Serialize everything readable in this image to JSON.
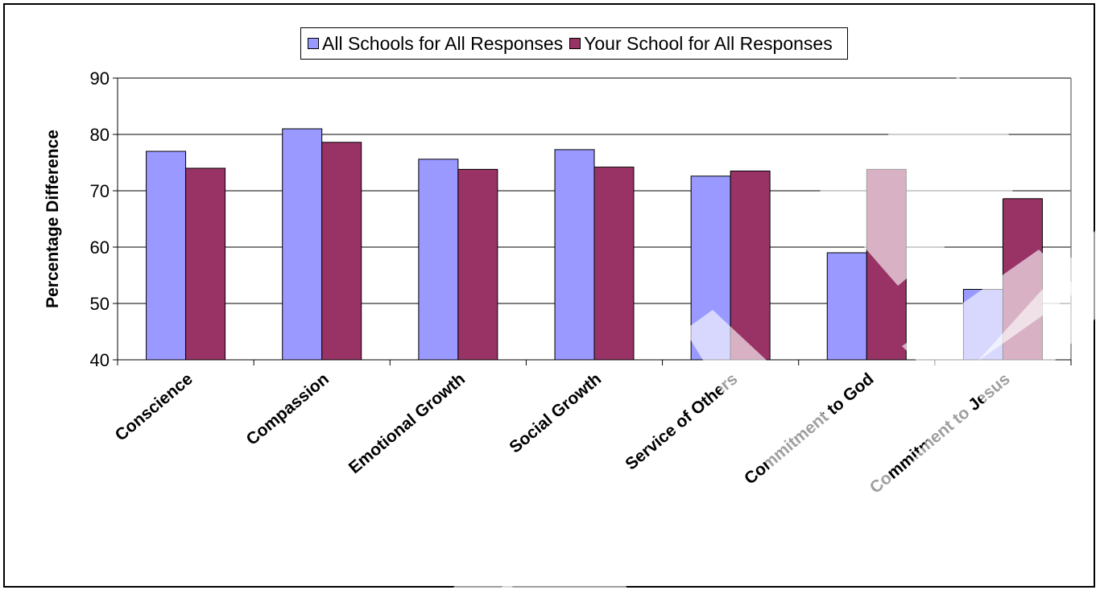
{
  "chart_data": {
    "type": "bar",
    "title": "",
    "xlabel": "",
    "ylabel": "Percentage Difference",
    "categories": [
      "Conscience",
      "Compassion",
      "Emotional Growth",
      "Social Growth",
      "Service of Others",
      "Commitment to God",
      "Commitment to Jesus"
    ],
    "series": [
      {
        "name": "All Schools for All Responses",
        "color": "#9999ff",
        "values": [
          77,
          81,
          75.6,
          77.3,
          72.6,
          59,
          52.5
        ]
      },
      {
        "name": "Your School for All Responses",
        "color": "#993366",
        "values": [
          74,
          78.6,
          73.8,
          74.2,
          73.5,
          73.8,
          68.6
        ]
      }
    ],
    "ylim": [
      40,
      90
    ],
    "yticks": [
      40,
      50,
      60,
      70,
      80,
      90
    ],
    "grid": true,
    "legend_position": "top"
  }
}
